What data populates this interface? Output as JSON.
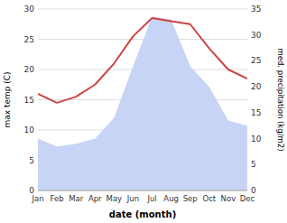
{
  "chart_data": {
    "type": "line",
    "categories": [
      "Jan",
      "Feb",
      "Mar",
      "Apr",
      "May",
      "Jun",
      "Jul",
      "Aug",
      "Sep",
      "Oct",
      "Nov",
      "Dec"
    ],
    "series": [
      {
        "type": "area",
        "color": "#c8d4f5",
        "axis": "y2",
        "values": [
          10.0,
          8.5,
          9.0,
          10.0,
          14.0,
          24.0,
          33.5,
          33.0,
          24.0,
          20.0,
          13.5,
          12.5
        ]
      },
      {
        "type": "line",
        "color": "#cc4444",
        "values": [
          16.0,
          14.5,
          15.5,
          17.5,
          21.0,
          25.5,
          28.5,
          28.0,
          27.5,
          23.5,
          20.0,
          18.5
        ]
      }
    ],
    "xlabel": "date (month)",
    "ylabel": "max temp (C)",
    "y2label": "med. precipitation (kg/m2)",
    "ylim": [
      0,
      30
    ],
    "yticks": [
      0,
      5,
      10,
      15,
      20,
      25,
      30
    ],
    "y2lim": [
      0,
      35
    ],
    "y2ticks": [
      0,
      5,
      10,
      15,
      20,
      25,
      30,
      35
    ],
    "grid": true
  }
}
